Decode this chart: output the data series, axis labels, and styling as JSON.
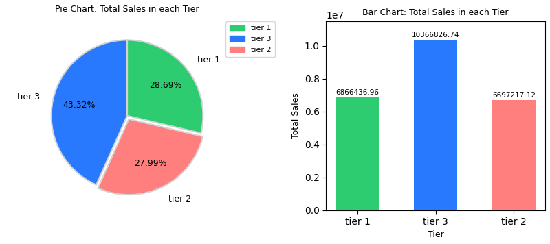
{
  "pie_title": "Pie Chart: Total Sales in each Tier",
  "bar_title": "Bar Chart: Total Sales in each Tier",
  "tiers": [
    "tier 1",
    "tier 3",
    "tier 2"
  ],
  "bar_tiers": [
    "tier 1",
    "tier 3",
    "tier 2"
  ],
  "values": [
    6866436.96,
    10366826.74,
    6697217.12
  ],
  "colors": [
    "#2ecc71",
    "#2979ff",
    "#ff7f7f"
  ],
  "pie_order": [
    "tier 1",
    "tier 2",
    "tier 3"
  ],
  "pie_values": [
    6866436.96,
    6697217.12,
    10366826.74
  ],
  "pie_colors": [
    "#2ecc71",
    "#ff7f7f",
    "#2979ff"
  ],
  "explode": [
    0.0,
    0.05,
    0.0
  ],
  "bar_xlabel": "Tier",
  "bar_ylabel": "Total Sales",
  "legend_labels": [
    "tier 1",
    "tier 3",
    "tier 2"
  ],
  "legend_colors": [
    "#2ecc71",
    "#2979ff",
    "#ff7f7f"
  ],
  "startangle": 90
}
